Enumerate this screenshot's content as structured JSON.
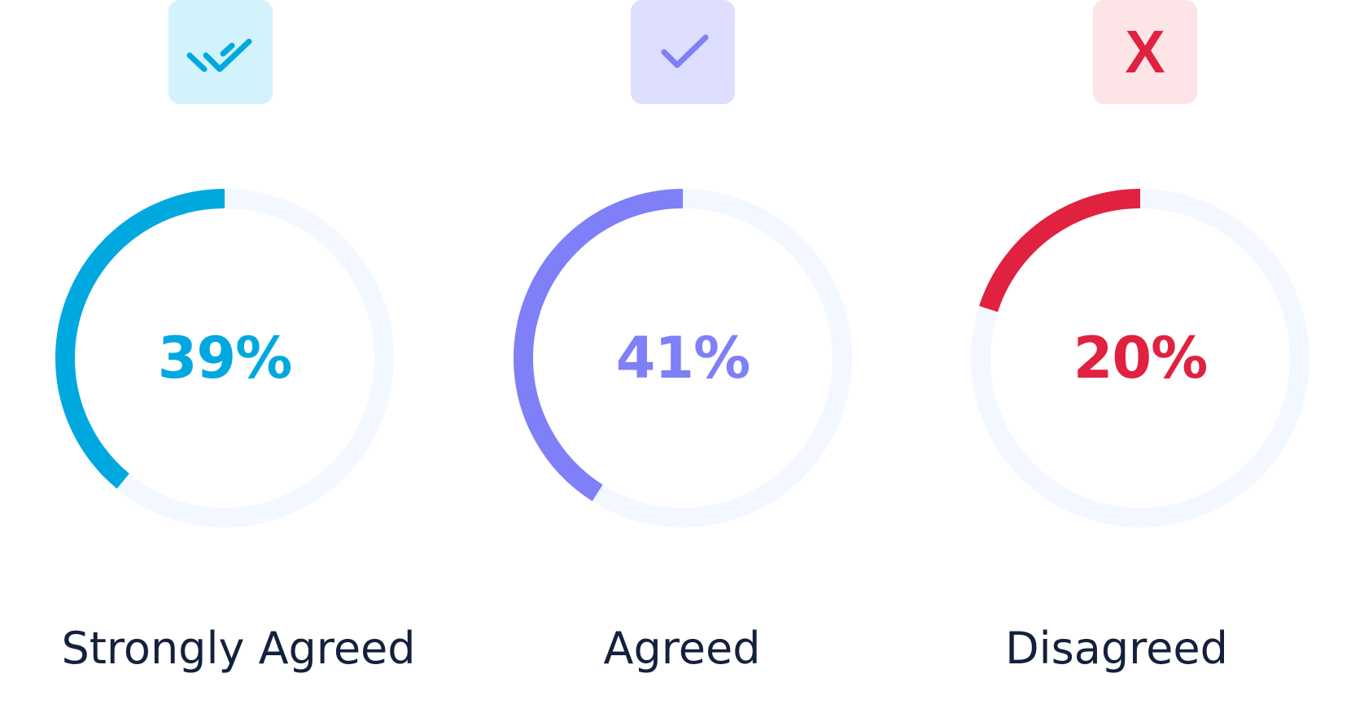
{
  "chart_data": {
    "type": "donut",
    "track_color": "#f3f7ff",
    "series": [
      {
        "label": "Strongly Agreed",
        "value": 39,
        "value_text": "39%",
        "color": "#00a8e0",
        "icon": "double-check-icon",
        "icon_bg": "#d2f3fc"
      },
      {
        "label": "Agreed",
        "value": 41,
        "value_text": "41%",
        "color": "#7f7ff8",
        "icon": "check-icon",
        "icon_bg": "#dedefe"
      },
      {
        "label": "Disagreed",
        "value": 20,
        "value_text": "20%",
        "color": "#e0213f",
        "icon": "x-icon",
        "icon_glyph": "X",
        "icon_bg": "#fde4e7"
      }
    ]
  }
}
